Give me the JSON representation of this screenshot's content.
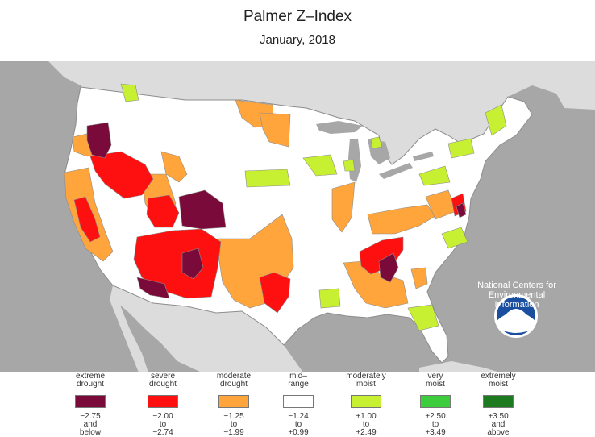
{
  "title": "Palmer Z–Index",
  "subtitle": "January, 2018",
  "agency": {
    "logo_text": "NOAA",
    "line1": "National Centers for",
    "line2": "Environmental",
    "line3": "Information"
  },
  "colors": {
    "water": "#a7a7a7",
    "land_outside": "#dcdcdc",
    "land_us": "#ffffff",
    "boundary": "#8c8c8c",
    "extreme_drought": "#7a0a3a",
    "severe_drought": "#ff1010",
    "moderate_drought": "#ffa53c",
    "mid_range": "#ffffff",
    "moderately_moist": "#c8f032",
    "very_moist": "#3ccc3c",
    "extremely_moist": "#1e7a1e"
  },
  "legend": [
    {
      "label_1": "extreme",
      "label_2": "drought",
      "range_1": "−2.75",
      "range_2": "and",
      "range_3": "below",
      "color": "#7a0a3a"
    },
    {
      "label_1": "severe",
      "label_2": "drought",
      "range_1": "−2.00",
      "range_2": "to",
      "range_3": "−2.74",
      "color": "#ff1010"
    },
    {
      "label_1": "moderate",
      "label_2": "drought",
      "range_1": "−1.25",
      "range_2": "to",
      "range_3": "−1.99",
      "color": "#ffa53c"
    },
    {
      "label_1": "mid–",
      "label_2": "range",
      "range_1": "−1.24",
      "range_2": "to",
      "range_3": "+0.99",
      "color": "#ffffff"
    },
    {
      "label_1": "moderately",
      "label_2": "moist",
      "range_1": "+1.00",
      "range_2": "to",
      "range_3": "+2.49",
      "color": "#c8f032"
    },
    {
      "label_1": "very",
      "label_2": "moist",
      "range_1": "+2.50",
      "range_2": "to",
      "range_3": "+3.49",
      "color": "#3ccc3c"
    },
    {
      "label_1": "extremely",
      "label_2": "moist",
      "range_1": "+3.50",
      "range_2": "and",
      "range_3": "above",
      "color": "#1e7a1e"
    }
  ]
}
